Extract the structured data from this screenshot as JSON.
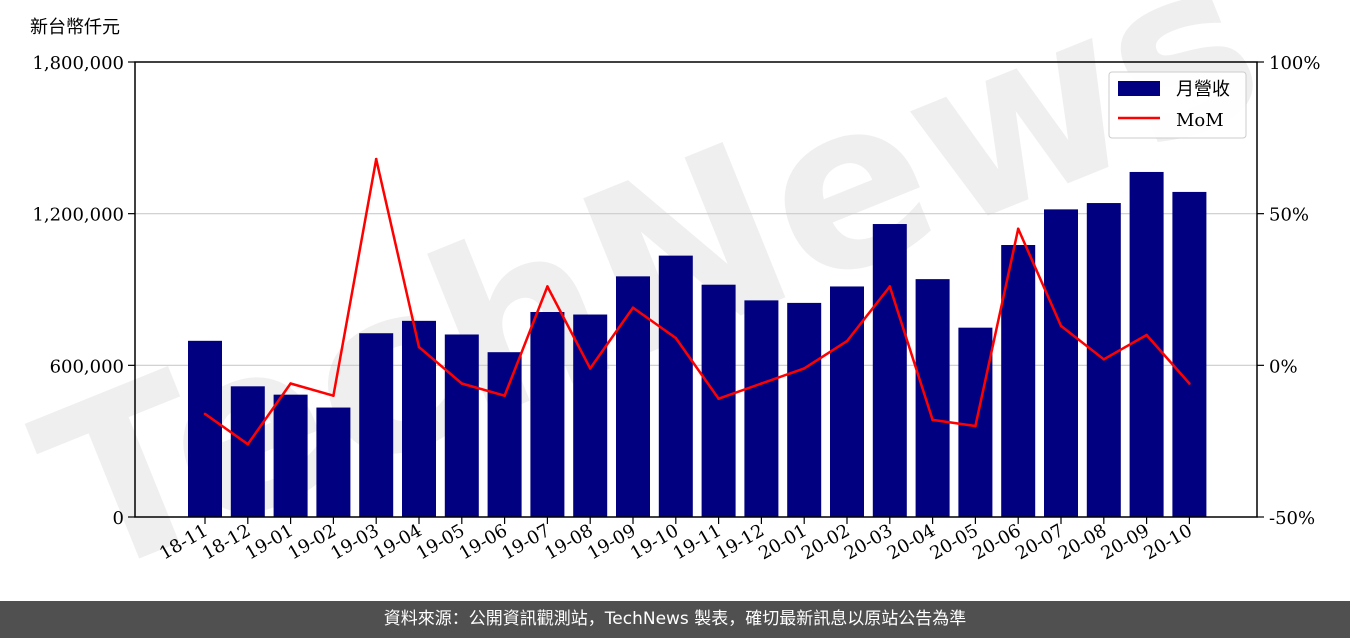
{
  "chart_data": {
    "type": "bar",
    "y_unit_label": "新台幣仟元",
    "categories": [
      "18-11",
      "18-12",
      "19-01",
      "19-02",
      "19-03",
      "19-04",
      "19-05",
      "19-06",
      "19-07",
      "19-08",
      "19-09",
      "19-10",
      "19-11",
      "19-12",
      "20-01",
      "20-02",
      "20-03",
      "20-04",
      "20-05",
      "20-06",
      "20-07",
      "20-08",
      "20-09",
      "20-10"
    ],
    "series": [
      {
        "name": "月營收",
        "type": "bar",
        "axis": "left",
        "color": "#000080",
        "values": [
          697000,
          517000,
          484000,
          433000,
          727000,
          776000,
          722000,
          652000,
          811000,
          801000,
          952000,
          1034000,
          919000,
          857000,
          847000,
          912000,
          1159000,
          941000,
          749000,
          1076000,
          1217000,
          1242000,
          1365000,
          1286000
        ]
      },
      {
        "name": "MoM",
        "type": "line",
        "axis": "right",
        "color": "#ff0000",
        "values": [
          -16,
          -26,
          -6,
          -10,
          68,
          6,
          -6,
          -10,
          26,
          -1,
          19,
          9,
          -11,
          -6,
          -1,
          8,
          26,
          -18,
          -20,
          45,
          13,
          2,
          10,
          -6
        ]
      }
    ],
    "ylim_left": [
      0,
      1800000
    ],
    "yticks_left": [
      "0",
      "600,000",
      "1,200,000",
      "1,800,000"
    ],
    "ylim_right": [
      -50,
      100
    ],
    "yticks_right": [
      "-50%",
      "0%",
      "50%",
      "100%"
    ],
    "grid": "horizontal",
    "legend_position": "top-right"
  },
  "watermark": "TechNews",
  "footer": {
    "source": "資料來源：公開資訊觀測站，TechNews 製表，確切最新訊息以原站公告為準"
  }
}
